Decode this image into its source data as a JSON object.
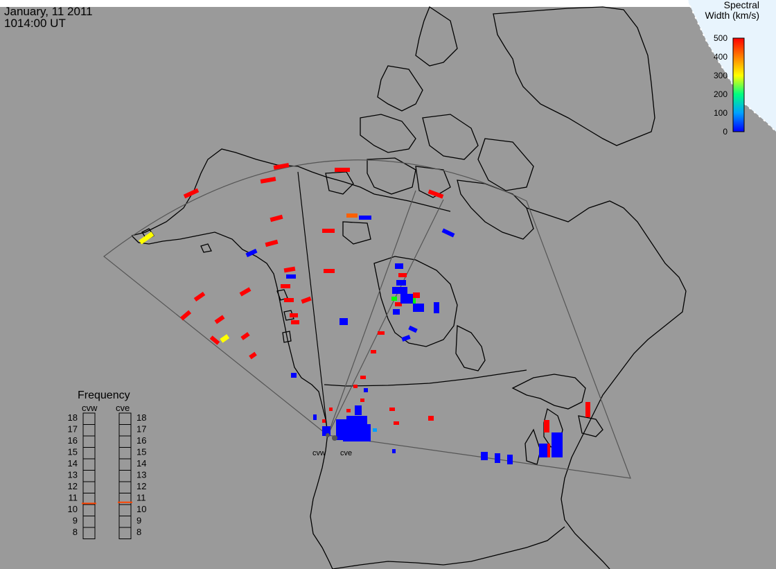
{
  "header": {
    "date": "January, 11 2011",
    "time": "1014:00 UT"
  },
  "colorbar": {
    "title_line1": "Spectral",
    "title_line2": "Width (km/s)",
    "ticks": [
      "500",
      "400",
      "300",
      "200",
      "100",
      "0"
    ],
    "stops": [
      "#ff0000",
      "#ff8000",
      "#ffff00",
      "#00ff00",
      "#00ffff",
      "#0000ff"
    ]
  },
  "stations": {
    "west": "cvw",
    "east": "cve"
  },
  "frequency_panel": {
    "title": "Frequency",
    "left_header": "cvw",
    "right_header": "cve",
    "levels": [
      "18",
      "17",
      "16",
      "15",
      "14",
      "13",
      "12",
      "11",
      "10",
      "9",
      "8"
    ],
    "west_mhz": 10.6,
    "east_mhz": 10.7,
    "marker_color": "#ff4400"
  },
  "colors": {
    "background_land": "#9a9a9a",
    "space": "#e8f4fd"
  }
}
